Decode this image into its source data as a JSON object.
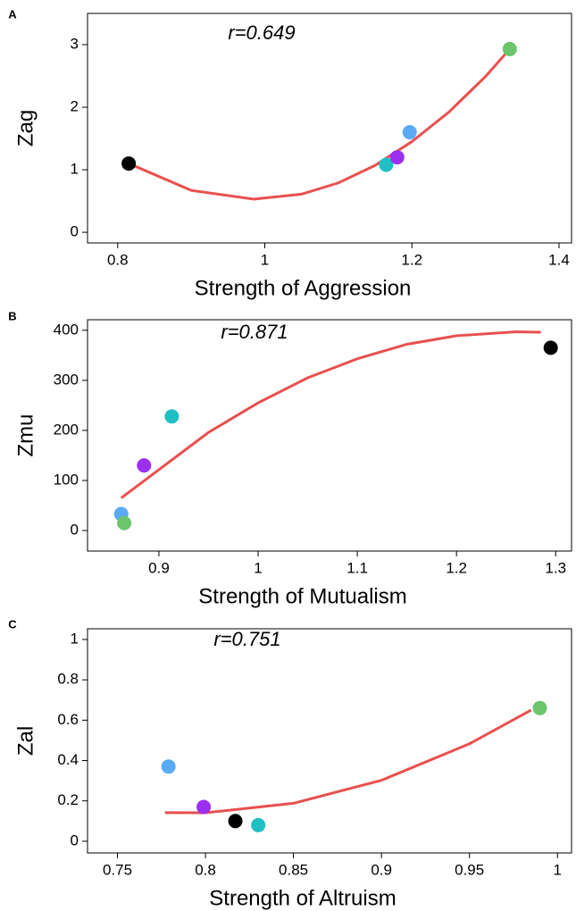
{
  "chart_data": [
    {
      "type": "scatter",
      "panel_label": "A",
      "annotation": "r=0.649",
      "xlabel": "Strength of Aggression",
      "ylabel": "Zag",
      "xlim": [
        0.759,
        1.417
      ],
      "ylim": [
        -0.17,
        3.5
      ],
      "xticks": [
        0.8,
        1,
        1.2,
        1.4
      ],
      "yticks": [
        0,
        1,
        2,
        3
      ],
      "points": {
        "x": [
          0.815,
          1.165,
          1.18,
          1.197,
          1.333
        ],
        "y": [
          1.1,
          1.08,
          1.2,
          1.6,
          2.93
        ],
        "colors": [
          "#000000",
          "#1fbfc4",
          "#9b30f0",
          "#5aaaf5",
          "#6cc46c"
        ]
      },
      "fit": {
        "color": "#e8504f",
        "x": [
          0.815,
          0.9,
          0.985,
          1.05,
          1.1,
          1.15,
          1.2,
          1.25,
          1.3,
          1.333
        ],
        "y": [
          1.1,
          0.67,
          0.53,
          0.61,
          0.79,
          1.07,
          1.45,
          1.92,
          2.49,
          2.93
        ]
      }
    },
    {
      "type": "scatter",
      "panel_label": "B",
      "annotation": "r=0.871",
      "xlabel": "Strength of Mutualism",
      "ylabel": "Zmu",
      "xlim": [
        0.828,
        1.316
      ],
      "ylim": [
        -41,
        421
      ],
      "xticks": [
        0.9,
        1,
        1.1,
        1.2,
        1.3
      ],
      "yticks": [
        0,
        100,
        200,
        300,
        400
      ],
      "points": {
        "x": [
          1.295,
          0.913,
          0.885,
          0.862,
          0.865
        ],
        "y": [
          365,
          228,
          130,
          33,
          15
        ],
        "colors": [
          "#000000",
          "#1fbfc4",
          "#9b30f0",
          "#5aaaf5",
          "#6cc46c"
        ]
      },
      "fit": {
        "color": "#e8504f",
        "x": [
          0.862,
          0.95,
          1.0,
          1.05,
          1.1,
          1.15,
          1.2,
          1.26,
          1.285
        ],
        "y": [
          65,
          196,
          255,
          305,
          343,
          372,
          389,
          397,
          396
        ]
      }
    },
    {
      "type": "scatter",
      "panel_label": "C",
      "annotation": "r=0.751",
      "xlabel": "Strength of Altruism",
      "ylabel": "Zal",
      "xlim": [
        0.733,
        1.008
      ],
      "ylim": [
        -0.058,
        1.053
      ],
      "xticks": [
        0.75,
        0.8,
        0.85,
        0.9,
        0.95,
        1
      ],
      "yticks": [
        0,
        0.2,
        0.4,
        0.6,
        0.8,
        1
      ],
      "points": {
        "x": [
          0.779,
          0.799,
          0.817,
          0.83,
          0.99
        ],
        "y": [
          0.37,
          0.17,
          0.1,
          0.08,
          0.66
        ],
        "colors": [
          "#5aaaf5",
          "#9b30f0",
          "#000000",
          "#1fbfc4",
          "#6cc46c"
        ]
      },
      "fit": {
        "color": "#e8504f",
        "x": [
          0.777,
          0.8,
          0.85,
          0.9,
          0.95,
          0.985
        ],
        "y": [
          0.142,
          0.141,
          0.188,
          0.302,
          0.483,
          0.65
        ]
      }
    }
  ]
}
